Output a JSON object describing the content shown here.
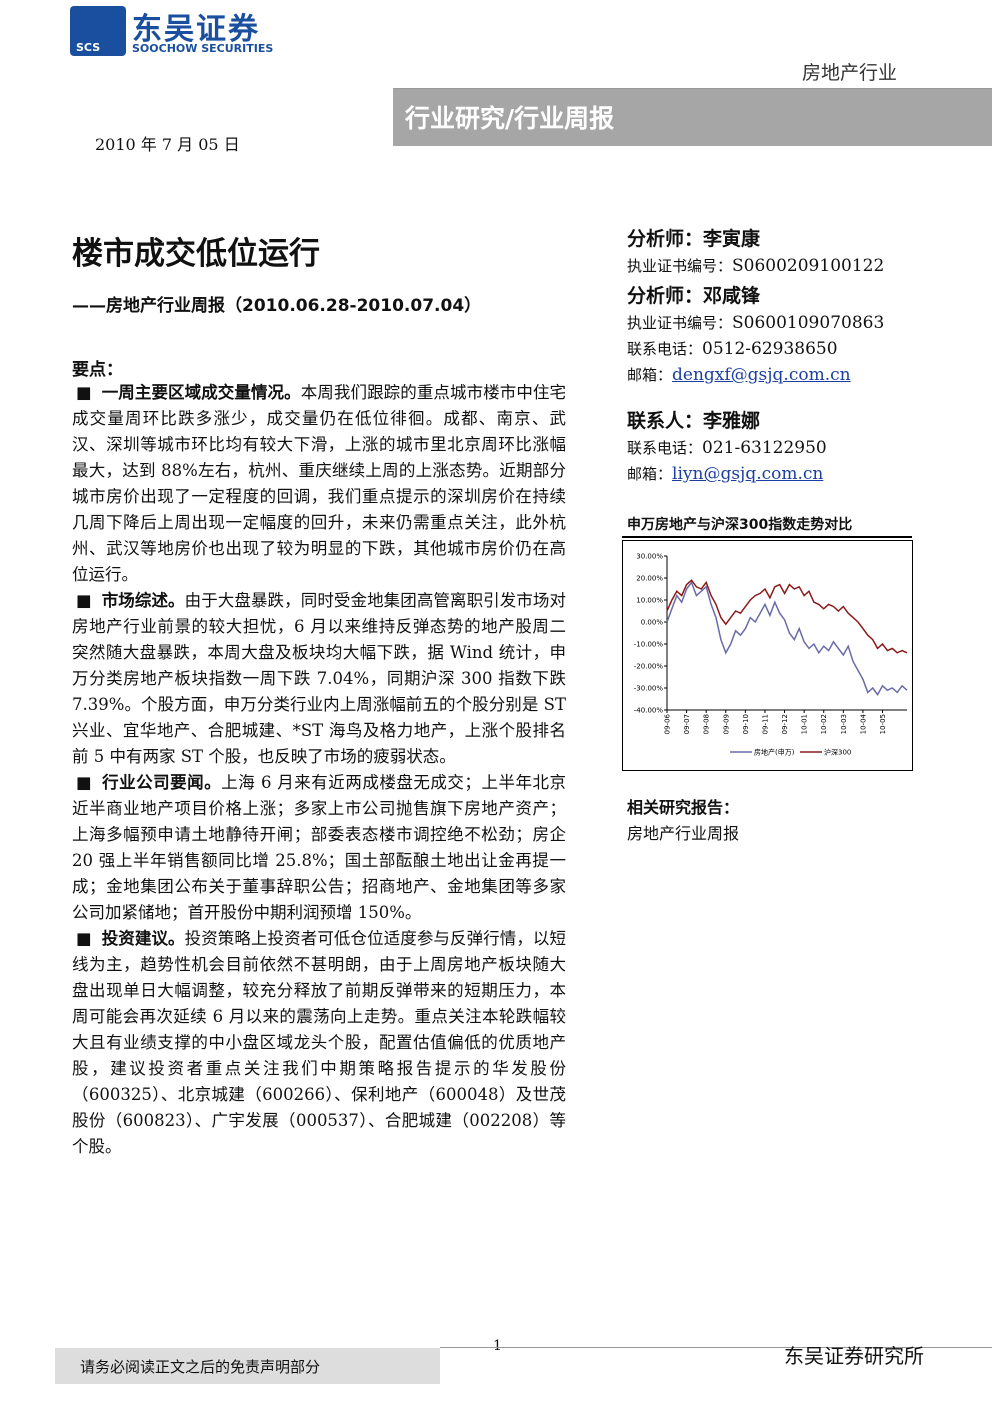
{
  "header": {
    "logo_abbr": "SCS",
    "company_cn": "东吴证券",
    "company_en": "SOOCHOW SECURITIES",
    "sector": "房地产行业",
    "report_type": "行业研究/行业周报",
    "date": "2010 年 7 月 05 日"
  },
  "title": "楼市成交低位运行",
  "subtitle": "——房地产行业周报（2010.06.28-2010.07.04）",
  "key_points_heading": "要点：",
  "key_points": [
    {
      "lead": "一周主要区域成交量情况。",
      "text": "本周我们跟踪的重点城市楼市中住宅成交量周环比跌多涨少，成交量仍在低位徘徊。成都、南京、武汉、深圳等城市环比均有较大下滑，上涨的城市里北京周环比涨幅最大，达到 88%左右，杭州、重庆继续上周的上涨态势。近期部分城市房价出现了一定程度的回调，我们重点提示的深圳房价在持续几周下降后上周出现一定幅度的回升，未来仍需重点关注，此外杭州、武汉等地房价也出现了较为明显的下跌，其他城市房价仍在高位运行。"
    },
    {
      "lead": "市场综述。",
      "text": "由于大盘暴跌，同时受金地集团高管离职引发市场对房地产行业前景的较大担忧，6 月以来维持反弹态势的地产股周二突然随大盘暴跌，本周大盘及板块均大幅下跌，据 Wind 统计，申万分类房地产板块指数一周下跌 7.04%，同期沪深 300 指数下跌 7.39%。个股方面，申万分类行业内上周涨幅前五的个股分别是 ST 兴业、宜华地产、合肥城建、*ST 海鸟及格力地产，上涨个股排名前 5 中有两家 ST 个股，也反映了市场的疲弱状态。"
    },
    {
      "lead": "行业公司要闻。",
      "text": "上海 6 月来有近两成楼盘无成交；上半年北京近半商业地产项目价格上涨；多家上市公司抛售旗下房地产资产；上海多幅预申请土地静待开闸；部委表态楼市调控绝不松劲；房企 20 强上半年销售额同比增 25.8%；国土部酝酿土地出让金再提一成；金地集团公布关于董事辞职公告；招商地产、金地集团等多家公司加紧储地；首开股份中期利润预增 150%。"
    },
    {
      "lead": "投资建议。",
      "text": "投资策略上投资者可低仓位适度参与反弹行情，以短线为主，趋势性机会目前依然不甚明朗，由于上周房地产板块随大盘出现单日大幅调整，较充分释放了前期反弹带来的短期压力，本周可能会再次延续 6 月以来的震荡向上走势。重点关注本轮跌幅较大且有业绩支撑的中小盘区域龙头个股，配置估值偏低的优质地产股，建议投资者重点关注我们中期策略报告提示的华发股份（600325）、北京城建（600266）、保利地产（600048）及世茂股份（600823）、广宇发展（000537）、合肥城建（002208）等个股。"
    }
  ],
  "analysts": [
    {
      "label": "分析师：",
      "name": "李寅康",
      "cert_label": "执业证书编号：",
      "cert": "S0600209100122"
    },
    {
      "label": "分析师：",
      "name": "邓咸锋",
      "cert_label": "执业证书编号：",
      "cert": "S0600109070863",
      "phone_label": "联系电话：",
      "phone": "0512-62938650",
      "email_label": "邮箱：",
      "email": "dengxf@gsjq.com.cn"
    }
  ],
  "contact": {
    "label": "联系人：",
    "name": "李雅娜",
    "phone_label": "联系电话：",
    "phone": "021-63122950",
    "email_label": "邮箱：",
    "email": "liyn@gsjq.com.cn"
  },
  "chart_data": {
    "type": "line",
    "title": "申万房地产与沪深300指数走势对比",
    "categories": [
      "09-06",
      null,
      null,
      null,
      "09-07",
      null,
      null,
      null,
      "09-08",
      null,
      null,
      null,
      "09-09",
      null,
      null,
      null,
      "09-10",
      null,
      null,
      null,
      "09-11",
      null,
      null,
      null,
      "09-12",
      null,
      null,
      null,
      "10-01",
      null,
      null,
      null,
      "10-02",
      null,
      null,
      null,
      "10-03",
      null,
      null,
      null,
      "10-04",
      null,
      null,
      null,
      "10-05",
      null,
      null,
      null,
      null,
      null
    ],
    "series": [
      {
        "name": "房地产(申万)",
        "color": "#6a6aa8",
        "values": [
          0,
          6,
          12,
          9,
          15,
          18,
          12,
          14,
          16,
          8,
          2,
          -8,
          -14,
          -10,
          -4,
          -6,
          -3,
          2,
          0,
          4,
          8,
          3,
          9,
          4,
          1,
          -5,
          -8,
          -3,
          -9,
          -12,
          -10,
          -14,
          -11,
          -13,
          -9,
          -12,
          -15,
          -11,
          -18,
          -22,
          -26,
          -32,
          -30,
          -33,
          -29,
          -31,
          -30,
          -32,
          -29,
          -31
        ]
      },
      {
        "name": "沪深300",
        "color": "#8b1a1a",
        "values": [
          5,
          10,
          14,
          12,
          17,
          19,
          16,
          15,
          18,
          12,
          8,
          2,
          -1,
          2,
          5,
          4,
          7,
          10,
          12,
          13,
          15,
          11,
          16,
          17,
          13,
          17,
          15,
          16,
          12,
          14,
          9,
          8,
          6,
          8,
          7,
          5,
          7,
          4,
          2,
          0,
          -3,
          -6,
          -8,
          -12,
          -10,
          -13,
          -12,
          -14,
          -13,
          -14
        ]
      }
    ],
    "ylim": [
      -40,
      30
    ],
    "yticks": [
      {
        "value": 30,
        "label": "30.00%"
      },
      {
        "value": 20,
        "label": "20.00%"
      },
      {
        "value": 10,
        "label": "10.00%"
      },
      {
        "value": 0,
        "label": "0.00%"
      },
      {
        "value": -10,
        "label": "-10.00%"
      },
      {
        "value": -20,
        "label": "-20.00%"
      },
      {
        "value": -30,
        "label": "-30.00%"
      },
      {
        "value": -40,
        "label": "-40.00%"
      }
    ]
  },
  "related": {
    "heading": "相关研究报告：",
    "items": [
      "房地产行业周报"
    ]
  },
  "footer": {
    "disclaimer": "请务必阅读正文之后的免责声明部分",
    "page": "1",
    "institute": "东吴证券研究所"
  }
}
